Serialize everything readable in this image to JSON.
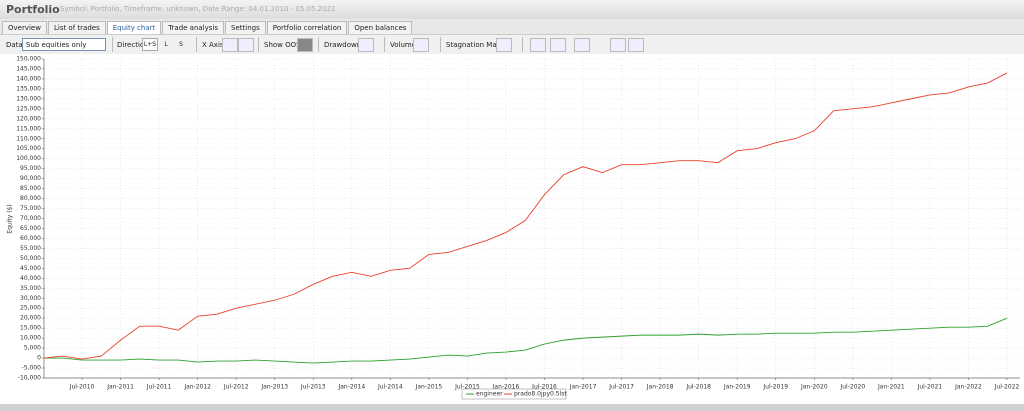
{
  "header": {
    "title": "Portfolio",
    "subtitle": "Symbol: Portfolio, Timeframe: unknown, Date Range: 04.01.2010 - 05.05.2022"
  },
  "tabs": [
    "Overview",
    "List of trades",
    "Equity chart",
    "Trade analysis",
    "Settings",
    "Portfolio correlation",
    "Open balances"
  ],
  "toolbar": {
    "data_label": "Data",
    "data_select": "Sub equities only",
    "direction_label": "Direction",
    "direction_buttons": [
      "L+S",
      "L",
      "S"
    ],
    "x_axis_label": "X Axis",
    "show_oos_label": "Show OOS",
    "drawdown_label": "Drawdown",
    "volume_label": "Volume",
    "stagnation_label": "Stagnation Marker"
  },
  "chart_data": {
    "type": "line",
    "y_label": "Equity ($)",
    "grid": true,
    "legend": "bottom",
    "x": [
      "Jan-2010",
      "Apr-2010",
      "Jul-2010",
      "Oct-2010",
      "Jan-2011",
      "Apr-2011",
      "Jul-2011",
      "Oct-2011",
      "Jan-2012",
      "Apr-2012",
      "Jul-2012",
      "Oct-2012",
      "Jan-2013",
      "Apr-2013",
      "Jul-2013",
      "Oct-2013",
      "Jan-2014",
      "Apr-2014",
      "Jul-2014",
      "Oct-2014",
      "Jan-2015",
      "Apr-2015",
      "Jul-2015",
      "Oct-2015",
      "Jan-2016",
      "Apr-2016",
      "Jul-2016",
      "Oct-2016",
      "Jan-2017",
      "Apr-2017",
      "Jul-2017",
      "Oct-2017",
      "Jan-2018",
      "Apr-2018",
      "Jul-2018",
      "Oct-2018",
      "Jan-2019",
      "Apr-2019",
      "Jul-2019",
      "Oct-2019",
      "Jan-2020",
      "Apr-2020",
      "Jul-2020",
      "Oct-2020",
      "Jan-2021",
      "Apr-2021",
      "Jul-2021",
      "Oct-2021",
      "Jan-2022",
      "Apr-2022",
      "Jul-2022"
    ],
    "xticks": [
      "Jul-2010",
      "Jan-2011",
      "Jul-2011",
      "Jan-2012",
      "Jul-2012",
      "Jan-2013",
      "Jul-2013",
      "Jan-2014",
      "Jul-2014",
      "Jan-2015",
      "Jul-2015",
      "Jan-2016",
      "Jul-2016",
      "Jan-2017",
      "Jul-2017",
      "Jan-2018",
      "Jul-2018",
      "Jan-2019",
      "Jul-2019",
      "Jan-2020",
      "Jul-2020",
      "Jan-2021",
      "Jul-2021",
      "Jan-2022",
      "Jul-2022"
    ],
    "ylim": [
      -10000,
      150000
    ],
    "yticks": [
      {
        "value": -10000,
        "label": "-10,000"
      },
      {
        "value": -5000,
        "label": "-5,000"
      },
      0,
      {
        "value": 5000,
        "label": "5,000"
      },
      {
        "value": 10000,
        "label": "10,000"
      },
      {
        "value": 15000,
        "label": "15,000"
      },
      {
        "value": 20000,
        "label": "20,000"
      },
      {
        "value": 25000,
        "label": "25,000"
      },
      {
        "value": 30000,
        "label": "30,000"
      },
      {
        "value": 35000,
        "label": "35,000"
      },
      {
        "value": 40000,
        "label": "40,000"
      },
      {
        "value": 45000,
        "label": "45,000"
      },
      {
        "value": 50000,
        "label": "50,000"
      },
      {
        "value": 55000,
        "label": "55,000"
      },
      {
        "value": 60000,
        "label": "60,000"
      },
      {
        "value": 65000,
        "label": "65,000"
      },
      {
        "value": 70000,
        "label": "70,000"
      },
      {
        "value": 75000,
        "label": "75,000"
      },
      {
        "value": 80000,
        "label": "80,000"
      },
      {
        "value": 85000,
        "label": "85,000"
      },
      {
        "value": 90000,
        "label": "90,000"
      },
      {
        "value": 95000,
        "label": "95,000"
      },
      {
        "value": 100000,
        "label": "100,000"
      },
      {
        "value": 105000,
        "label": "105,000"
      },
      {
        "value": 110000,
        "label": "110,000"
      },
      {
        "value": 115000,
        "label": "115,000"
      },
      {
        "value": 120000,
        "label": "120,000"
      },
      {
        "value": 125000,
        "label": "125,000"
      },
      {
        "value": 130000,
        "label": "130,000"
      },
      {
        "value": 135000,
        "label": "135,000"
      },
      {
        "value": 140000,
        "label": "140,000"
      },
      {
        "value": 145000,
        "label": "145,000"
      },
      {
        "value": 150000,
        "label": "150,000"
      }
    ],
    "series": [
      {
        "name": "engineer",
        "color": "#2ca02c",
        "values": [
          0,
          0,
          -1000,
          -1000,
          -1000,
          -500,
          -1000,
          -1000,
          -2000,
          -1500,
          -1500,
          -1000,
          -1500,
          -2000,
          -2500,
          -2000,
          -1500,
          -1500,
          -1000,
          -500,
          500,
          1500,
          1000,
          2500,
          3000,
          4000,
          7000,
          9000,
          10000,
          10500,
          11000,
          11500,
          11500,
          11500,
          12000,
          11500,
          12000,
          12000,
          12500,
          12500,
          12500,
          13000,
          13000,
          13500,
          14000,
          14500,
          15000,
          15500,
          15500,
          16000,
          20000
        ]
      },
      {
        "name": "prado8.0jpy0.5lst",
        "color": "#e8412a",
        "values": [
          0,
          1000,
          -500,
          1000,
          9000,
          16000,
          16000,
          14000,
          21000,
          22000,
          25000,
          27000,
          29000,
          32000,
          37000,
          41000,
          43000,
          41000,
          44000,
          45000,
          52000,
          53000,
          56000,
          59000,
          63000,
          69000,
          82000,
          92000,
          96000,
          93000,
          97000,
          97000,
          98000,
          99000,
          99000,
          98000,
          104000,
          105000,
          108000,
          110000,
          114000,
          124000,
          125000,
          126000,
          128000,
          130000,
          132000,
          133000,
          136000,
          138000,
          143000
        ]
      }
    ]
  }
}
